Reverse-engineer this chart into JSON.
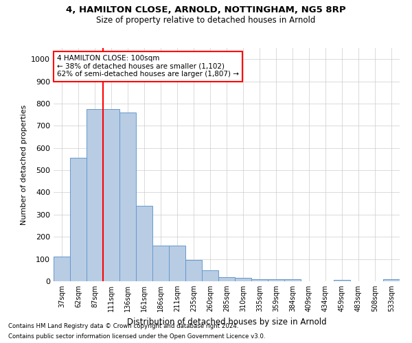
{
  "title_line1": "4, HAMILTON CLOSE, ARNOLD, NOTTINGHAM, NG5 8RP",
  "title_line2": "Size of property relative to detached houses in Arnold",
  "xlabel": "Distribution of detached houses by size in Arnold",
  "ylabel": "Number of detached properties",
  "categories": [
    "37sqm",
    "62sqm",
    "87sqm",
    "111sqm",
    "136sqm",
    "161sqm",
    "186sqm",
    "211sqm",
    "235sqm",
    "260sqm",
    "285sqm",
    "310sqm",
    "335sqm",
    "359sqm",
    "384sqm",
    "409sqm",
    "434sqm",
    "459sqm",
    "483sqm",
    "508sqm",
    "533sqm"
  ],
  "values": [
    110,
    555,
    775,
    775,
    760,
    340,
    160,
    160,
    95,
    50,
    20,
    15,
    10,
    10,
    10,
    0,
    0,
    5,
    0,
    0,
    10
  ],
  "bar_color": "#b8cce4",
  "bar_edgecolor": "#6699cc",
  "red_line_x": 2.5,
  "annotation_text": "4 HAMILTON CLOSE: 100sqm\n← 38% of detached houses are smaller (1,102)\n62% of semi-detached houses are larger (1,807) →",
  "ylim": [
    0,
    1050
  ],
  "yticks": [
    0,
    100,
    200,
    300,
    400,
    500,
    600,
    700,
    800,
    900,
    1000
  ],
  "footnote_line1": "Contains HM Land Registry data © Crown copyright and database right 2024.",
  "footnote_line2": "Contains public sector information licensed under the Open Government Licence v3.0.",
  "bg_color": "#ffffff",
  "grid_color": "#cccccc"
}
